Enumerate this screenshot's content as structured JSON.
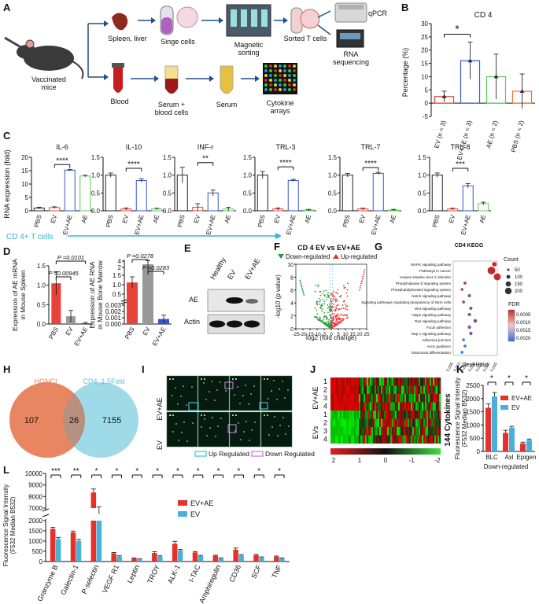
{
  "panels": {
    "A": {
      "label": "A",
      "mice": "Vaccinated mice",
      "spleen": "Spleen, liver",
      "singe": "Singe cells",
      "magnetic": "Magnetic sorting",
      "sorted": "Sorted T cells",
      "qpcr": "qPCR",
      "rnaseq": "RNA sequencing",
      "blood": "Blood",
      "serum_blood": "Serum + blood cells",
      "serum": "Serum",
      "cytokine": "Cytokine arrays"
    },
    "B": {
      "label": "B"
    },
    "C": {
      "label": "C",
      "cd4_label": "CD 4+ T cells",
      "ylabel": "RNA expression (fold)"
    },
    "D": {
      "label": "D"
    },
    "E": {
      "label": "E",
      "lanes": [
        "Healthy",
        "EV",
        "EV+AE"
      ],
      "bands": [
        "AE",
        "Actin"
      ]
    },
    "F": {
      "label": "F"
    },
    "G": {
      "label": "G"
    },
    "H": {
      "label": "H",
      "left_name": "HGNCI",
      "right_name": "CD4_1.5Fold",
      "left_only": "107",
      "overlap": "26",
      "right_only": "7155"
    },
    "I": {
      "label": "I",
      "row1": "EV+AE",
      "row2": "EV",
      "legend_up": "Up Regulated",
      "legend_down": "Down Regulated"
    },
    "J": {
      "label": "J",
      "group1": "EV+AE",
      "group2": "EVs",
      "rows": [
        "1",
        "2",
        "3",
        "4",
        "1",
        "2",
        "3",
        "4"
      ],
      "side_label": "144 Cytokines",
      "scale": [
        "2",
        "1",
        "0",
        "-1",
        "-2"
      ]
    },
    "K": {
      "label": "K"
    },
    "L": {
      "label": "L"
    }
  },
  "chart_data": [
    {
      "id": "B",
      "type": "bar",
      "title": "CD 4",
      "ylabel": "Percentage (%)",
      "categories": [
        "EV (n = 3)",
        "EV+AE (n = 3)",
        "AE (n = 2)",
        "PBS (n = 2)"
      ],
      "values": [
        2.5,
        16,
        10,
        4.5
      ],
      "errors": [
        2,
        7,
        8.5,
        6.5
      ],
      "colors": [
        "#e8423a",
        "#3a55c8",
        "#5cc85c",
        "#f0702a"
      ],
      "ylim": [
        -5,
        30
      ],
      "yticks": [
        -5,
        0,
        5,
        10,
        15,
        20,
        25,
        30
      ],
      "sig": [
        {
          "from": 0,
          "to": 1,
          "text": "*"
        }
      ]
    },
    {
      "id": "C",
      "type": "bar",
      "categories": [
        "PBS",
        "EV",
        "EV+AE",
        "AE"
      ],
      "colors": [
        "#222222",
        "#e8423a",
        "#3a55c8",
        "#5cc85c"
      ],
      "charts": [
        {
          "title": "IL-6",
          "values": [
            1,
            1.2,
            15.2,
            13
          ],
          "errors": [
            0.3,
            0.3,
            0.3,
            0.3
          ],
          "ylim": [
            0,
            20
          ],
          "yticks": [
            0,
            5,
            10,
            15,
            20
          ],
          "sig": "****"
        },
        {
          "title": "IL-10",
          "values": [
            1.0,
            0.05,
            0.85,
            0.05
          ],
          "errors": [
            0.06,
            0.03,
            0.05,
            0.02
          ],
          "ylim": [
            0,
            1.5
          ],
          "yticks": [
            0.0,
            0.5,
            1.0,
            1.5
          ],
          "sig": "****"
        },
        {
          "title": "INF-r",
          "values": [
            1.0,
            0.1,
            0.5,
            0.05
          ],
          "errors": [
            0.22,
            0.1,
            0.08,
            0.05
          ],
          "ylim": [
            0,
            1.5
          ],
          "yticks": [
            0.0,
            0.5,
            1.0,
            1.5
          ],
          "sig": "**"
        },
        {
          "title": "TRL-3",
          "values": [
            1.0,
            0.05,
            0.85,
            0.02
          ],
          "errors": [
            0.1,
            0.03,
            0.03,
            0.02
          ],
          "ylim": [
            0,
            1.5
          ],
          "yticks": [
            0.0,
            0.5,
            1.0,
            1.5
          ],
          "sig": "****"
        },
        {
          "title": "TRL-7",
          "values": [
            1.0,
            0.05,
            1.05,
            0.02
          ],
          "errors": [
            0.05,
            0.02,
            0.03,
            0.02
          ],
          "ylim": [
            0,
            1.5
          ],
          "yticks": [
            0.0,
            0.5,
            1.0,
            1.5
          ],
          "sig": "****"
        },
        {
          "title": "TRL-8",
          "values": [
            1.0,
            0.05,
            0.7,
            0.2
          ],
          "errors": [
            0.06,
            0.02,
            0.06,
            0.04
          ],
          "ylim": [
            0,
            1.5
          ],
          "yticks": [
            0.0,
            0.5,
            1.0,
            1.5
          ],
          "sig": "***"
        }
      ]
    },
    {
      "id": "D1",
      "type": "bar",
      "ylabel": "Expression of AE mRNA in Mouse Spleen",
      "categories": [
        "PBS",
        "EV",
        "EV+AE"
      ],
      "values": [
        1.05,
        0.2,
        0.02
      ],
      "errors": [
        0.3,
        0.15,
        0.02
      ],
      "colors": [
        "#e8423a",
        "#999999",
        "#3a55c8"
      ],
      "ylim": [
        0,
        1.5
      ],
      "yticks": [
        0.0,
        0.5,
        1.0,
        1.5
      ],
      "sig": [
        {
          "from": 0,
          "to": 2,
          "text": "P =0.0101"
        },
        {
          "from": 0,
          "to": 1,
          "text": "P =0.00945"
        }
      ]
    },
    {
      "id": "D2",
      "type": "bar",
      "ylabel": "Expression of AE RNA in Mouse Bone Marrow",
      "categories": [
        "PBS",
        "EV",
        "EV+AE"
      ],
      "values": [
        1.2,
        3.0,
        0.0008
      ],
      "errors": [
        0.3,
        1.2,
        0.0006
      ],
      "colors": [
        "#e8423a",
        "#999999",
        "#3a55c8"
      ],
      "yticks": [
        "0.000",
        "0.001",
        "0.002",
        "0.003",
        "0.5",
        "1.0",
        "1.5",
        "2",
        "4"
      ],
      "sig": [
        {
          "from": 0,
          "to": 1,
          "text": "P =0.0278"
        },
        {
          "from": 1,
          "to": 2,
          "text": "P =0.0283"
        }
      ]
    },
    {
      "id": "F",
      "type": "scatter",
      "title": "CD 4  EV vs EV+AE",
      "legend": [
        "Down-regulated",
        "Up-regulated"
      ],
      "colors": [
        "#2a9a3a",
        "#e8302a"
      ],
      "xlabel": "log2 (fold change)",
      "ylabel": "-log10 (p value)",
      "xlim": [
        -25,
        25
      ],
      "xticks": [
        -25,
        -20,
        -15,
        -10,
        -5,
        0,
        5,
        10,
        15,
        20,
        25
      ],
      "ylim": [
        0,
        10
      ],
      "yticks": [
        0,
        2,
        4,
        6,
        8,
        10
      ]
    },
    {
      "id": "G",
      "type": "scatter",
      "title": "CD4 KEGG",
      "categories": [
        "MAPK signaling pathway",
        "Pathways in cancer",
        "Herpes simplex virus 1 infection",
        "Phospholipase D signaling system",
        "Phosphatidylinositol signaling system",
        "Notch signaling pathway",
        "Signaling pathways regulating pluripotency of stem cells",
        "Wnt signaling pathway",
        "Hippo signaling pathway",
        "Ras signaling pathway",
        "Focal adhesion",
        "Rap 1 signaling pathway",
        "Adherens junction",
        "Axon guidance",
        "Osteoclast differentiation"
      ],
      "x": [
        0.033,
        0.031,
        0.035,
        0.013,
        0.011,
        0.016,
        0.012,
        0.017,
        0.016,
        0.02,
        0.016,
        0.017,
        0.012,
        0.013,
        0.011
      ],
      "count": [
        120,
        260,
        230,
        50,
        40,
        60,
        50,
        60,
        60,
        80,
        70,
        70,
        40,
        50,
        45
      ],
      "fdr": [
        0.0002,
        0.0001,
        0.0002,
        0.0006,
        0.0008,
        0.001,
        0.0009,
        0.001,
        0.0011,
        0.0009,
        0.0012,
        0.0012,
        0.0014,
        0.0018,
        0.002
      ],
      "xlabel": "GeneRatio",
      "xticks": [
        "0.005",
        "0.010",
        "0.015",
        "0.020",
        "0.025",
        "0.030",
        "0.035"
      ],
      "size_legend_title": "Count",
      "size_legend": [
        "50",
        "100",
        "150",
        "200"
      ],
      "color_legend_title": "FDR",
      "color_legend": [
        "0.0005",
        "0.0010",
        "0.0015",
        "0.0020"
      ]
    },
    {
      "id": "K",
      "type": "bar",
      "ylabel": "Fluorescence Signal Intensity (F532 Median B532)",
      "xlabel": "Down-regulated",
      "categories": [
        "BLC",
        "Axl",
        "Epigen"
      ],
      "series": [
        {
          "name": "EV+AE",
          "values": [
            1650,
            700,
            300
          ],
          "errors": [
            150,
            100,
            50
          ],
          "color": "#e8302a"
        },
        {
          "name": "EV",
          "values": [
            2080,
            900,
            430
          ],
          "errors": [
            150,
            50,
            40
          ],
          "color": "#4ab0d8"
        }
      ],
      "ylim": [
        0,
        2500
      ],
      "yticks": [
        0,
        500,
        1000,
        1500,
        2000,
        2500
      ],
      "sig": [
        "*",
        "*",
        "*"
      ]
    },
    {
      "id": "L",
      "type": "bar",
      "ylabel": "Fluorescence Signal Intensity (F532 Median B532)",
      "categories": [
        "Granzyme B",
        "Galectin-1",
        "P-selectin",
        "VEGF R1",
        "Leptin",
        "TROY",
        "ALK-1",
        "I-TAC",
        "Amphiregulin",
        "CD36",
        "SCF",
        "TNF"
      ],
      "series": [
        {
          "name": "EV+AE",
          "values": [
            1600,
            1420,
            8350,
            400,
            150,
            420,
            870,
            450,
            280,
            580,
            310,
            240
          ],
          "errors": [
            70,
            70,
            300,
            40,
            25,
            60,
            120,
            40,
            30,
            80,
            40,
            30
          ],
          "color": "#e8302a"
        },
        {
          "name": "EV",
          "values": [
            1100,
            1000,
            6800,
            250,
            110,
            250,
            550,
            270,
            150,
            300,
            200,
            150
          ],
          "errors": [
            80,
            80,
            300,
            30,
            20,
            30,
            50,
            30,
            30,
            40,
            30,
            30
          ],
          "color": "#4ab0d8"
        }
      ],
      "yticks": [
        "0",
        "500",
        "1000",
        "1500",
        "2000",
        "7000",
        "8000",
        "9000",
        "10000"
      ],
      "sig": [
        "***",
        "**",
        "*",
        "*",
        "*",
        "*",
        "*",
        "*",
        "*",
        "*",
        "*",
        "*"
      ]
    }
  ]
}
